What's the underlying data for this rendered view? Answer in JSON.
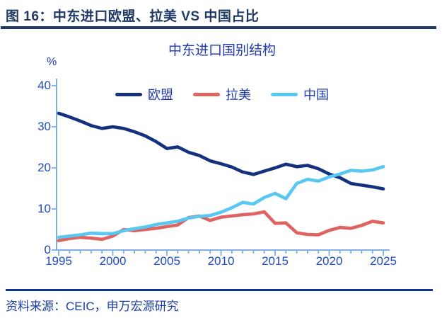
{
  "header": {
    "title": "图 16：中东进口欧盟、拉美 VS 中国占比"
  },
  "footer": {
    "source": "资料来源：CEIC，申万宏源研究"
  },
  "colors": {
    "header_navy": "#1f3864",
    "rule_navy": "#12368f",
    "royal_blue_text": "#1f4ac0",
    "axis_blue": "#7cb0e4"
  },
  "chart_data": {
    "type": "line",
    "title": "中东进口国别结构",
    "unit_label": "%",
    "xlabel": "",
    "ylabel": "%",
    "xlim": [
      1995,
      2025.4
    ],
    "ylim": [
      0,
      40
    ],
    "grid": false,
    "legend_position": "top-center",
    "axis_color": "#7cb0e4",
    "tick_label_color": "#1f4ac0",
    "x_ticks": [
      1995,
      2000,
      2005,
      2010,
      2015,
      2020,
      2025
    ],
    "y_ticks": [
      0,
      10,
      20,
      30,
      40
    ],
    "x": [
      1995,
      1996,
      1997,
      1998,
      1999,
      2000,
      2001,
      2002,
      2003,
      2004,
      2005,
      2006,
      2007,
      2008,
      2009,
      2010,
      2011,
      2012,
      2013,
      2014,
      2015,
      2016,
      2017,
      2018,
      2019,
      2020,
      2021,
      2022,
      2023,
      2024,
      2025
    ],
    "series": [
      {
        "key": "eu",
        "name": "欧盟",
        "color": "#14317d",
        "values": [
          33.3,
          32.4,
          31.4,
          30.3,
          29.6,
          30.0,
          29.6,
          28.8,
          27.8,
          26.4,
          24.7,
          25.1,
          23.8,
          23.0,
          21.7,
          21.0,
          20.2,
          19.0,
          18.4,
          19.2,
          20.0,
          20.9,
          20.3,
          20.6,
          19.8,
          18.5,
          17.6,
          16.2,
          15.8,
          15.4,
          14.9
        ]
      },
      {
        "key": "latam",
        "name": "拉美",
        "color": "#df6360",
        "values": [
          2.3,
          2.8,
          3.1,
          2.9,
          2.6,
          3.4,
          5.0,
          4.7,
          5.0,
          5.3,
          5.7,
          6.1,
          7.9,
          8.3,
          7.2,
          8.0,
          8.3,
          8.6,
          8.8,
          9.3,
          6.5,
          6.6,
          4.2,
          3.8,
          3.7,
          4.8,
          5.5,
          5.3,
          6.0,
          7.0,
          6.6
        ]
      },
      {
        "key": "china",
        "name": "中国",
        "color": "#58c8f2",
        "values": [
          3.1,
          3.4,
          3.7,
          4.1,
          4.0,
          4.0,
          4.7,
          5.2,
          5.6,
          6.2,
          6.6,
          7.0,
          7.8,
          8.2,
          8.4,
          9.2,
          10.3,
          11.6,
          11.2,
          12.8,
          13.8,
          12.5,
          16.2,
          17.2,
          16.8,
          17.8,
          18.5,
          19.4,
          19.2,
          19.5,
          20.3
        ]
      }
    ]
  }
}
